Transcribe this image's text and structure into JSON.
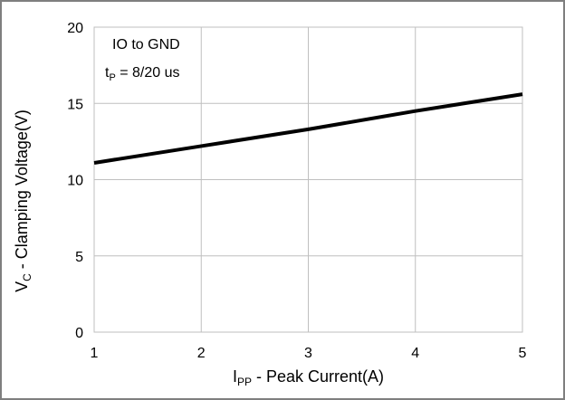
{
  "chart_data": {
    "type": "line",
    "x": [
      1,
      2,
      3,
      4,
      5
    ],
    "series": [
      {
        "values": [
          11.1,
          12.2,
          13.3,
          14.5,
          15.6
        ]
      }
    ],
    "xlim": [
      1,
      5
    ],
    "ylim": [
      0,
      20
    ],
    "x_ticks": [
      "1",
      "2",
      "3",
      "4",
      "5"
    ],
    "y_ticks": [
      "0",
      "5",
      "10",
      "15",
      "20"
    ],
    "xlabel": {
      "main": "I",
      "sub": "PP",
      "rest": " - Peak Current(A)"
    },
    "ylabel": {
      "main": "V",
      "sub": "C",
      "rest": " - Clamping Voltage(V)"
    },
    "annotations": {
      "line1": "IO to GND",
      "line2": {
        "main": "t",
        "sub": "P",
        "rest": " = 8/20 us"
      }
    },
    "grid": true,
    "legend": "none",
    "colors": {
      "line": "#000000",
      "grid": "#bfbfbf",
      "frame": "#7f7f7f"
    }
  }
}
